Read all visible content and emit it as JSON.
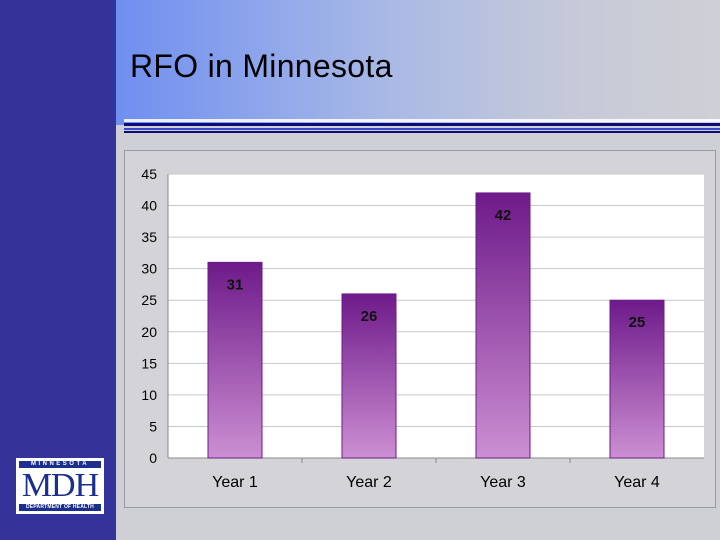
{
  "slide": {
    "title": "RFO in Minnesota"
  },
  "logo": {
    "top_text": "MINNESOTA",
    "main_text": "MDH",
    "bottom_text": "DEPARTMENT OF HEALTH"
  },
  "colors": {
    "left_bar": "#333399",
    "bar_top": "#6e1a8a",
    "bar_bottom": "#cc8fd2",
    "bar_stroke": "#6e1a8a",
    "plot_bg": "#ffffff",
    "grid": "#c8c8c8"
  },
  "chart_data": {
    "type": "bar",
    "title": "",
    "xlabel": "",
    "ylabel": "",
    "categories": [
      "Year 1",
      "Year 2",
      "Year 3",
      "Year 4"
    ],
    "values": [
      31,
      26,
      42,
      25
    ],
    "data_labels": [
      "31",
      "26",
      "42",
      "25"
    ],
    "ylim": [
      0,
      45
    ],
    "yticks": [
      0,
      5,
      10,
      15,
      20,
      25,
      30,
      35,
      40,
      45
    ],
    "grid": true,
    "legend": "none"
  }
}
